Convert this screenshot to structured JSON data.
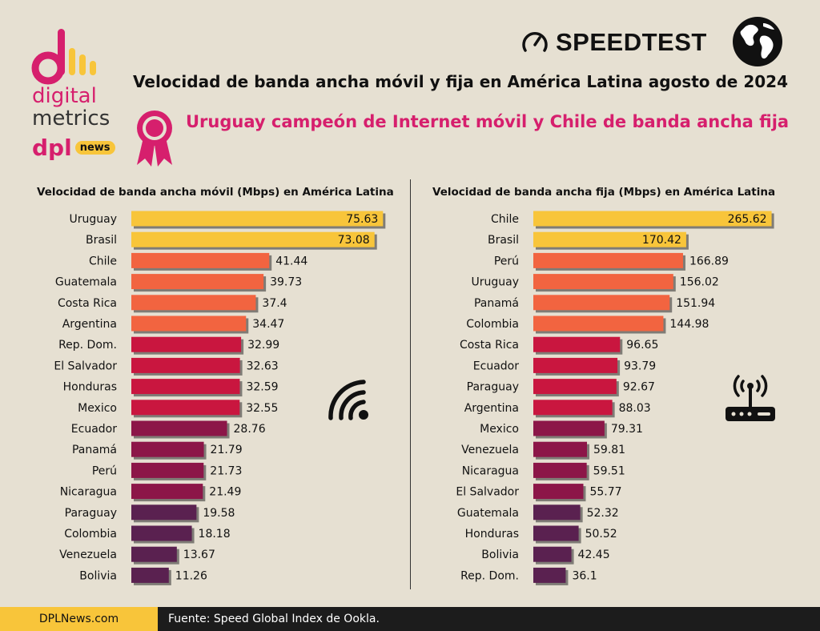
{
  "brand": {
    "logo_line1": "digital",
    "logo_line2": "metrics",
    "logo_dpl": "dpl",
    "logo_news": "news",
    "speedtest": "SPEEDTEST"
  },
  "header": {
    "title": "Velocidad de banda ancha móvil y fija en América Latina agosto de 2024",
    "subtitle": "Uruguay campeón de Internet móvil y Chile de banda ancha fija"
  },
  "colors": {
    "gold": "#f8c53a",
    "orange": "#f26440",
    "red": "#c9163f",
    "maroon": "#8c1648",
    "purple": "#5a2150",
    "accent_pink": "#d61f6d"
  },
  "icons": [
    "speedtest-gauge-icon",
    "globe-icon",
    "medal-icon",
    "wifi-icon",
    "router-icon"
  ],
  "footer": {
    "site": "DPLNews.com",
    "source": "Fuente: Speed Global Index de Ookla."
  },
  "chart_data": [
    {
      "type": "bar",
      "orientation": "horizontal",
      "title": "Velocidad de banda ancha móvil (Mbps) en América Latina",
      "categories": [
        "Uruguay",
        "Brasil",
        "Chile",
        "Guatemala",
        "Costa Rica",
        "Argentina",
        "Rep. Dom.",
        "El Salvador",
        "Honduras",
        "Mexico",
        "Ecuador",
        "Panamá",
        "Perú",
        "Nicaragua",
        "Paraguay",
        "Colombia",
        "Venezuela",
        "Bolivia"
      ],
      "values": [
        75.63,
        73.08,
        41.44,
        39.73,
        37.4,
        34.47,
        32.99,
        32.63,
        32.59,
        32.55,
        28.76,
        21.79,
        21.73,
        21.49,
        19.58,
        18.18,
        13.67,
        11.26
      ],
      "value_labels": [
        "75.63",
        "73.08",
        "41.44",
        "39.73",
        "37.4",
        "34.47",
        "32.99",
        "32.63",
        "32.59",
        "32.55",
        "28.76",
        "21.79",
        "21.73",
        "21.49",
        "19.58",
        "18.18",
        "13.67",
        "11.26"
      ],
      "bar_colors": [
        "gold",
        "gold",
        "orange",
        "orange",
        "orange",
        "orange",
        "red",
        "red",
        "red",
        "red",
        "maroon",
        "maroon",
        "maroon",
        "maroon",
        "purple",
        "purple",
        "purple",
        "purple"
      ],
      "xlim": [
        0,
        77
      ]
    },
    {
      "type": "bar",
      "orientation": "horizontal",
      "title": "Velocidad de banda ancha fija (Mbps) en América Latina",
      "categories": [
        "Chile",
        "Brasil",
        "Perú",
        "Uruguay",
        "Panamá",
        "Colombia",
        "Costa Rica",
        "Ecuador",
        "Paraguay",
        "Argentina",
        "Mexico",
        "Venezuela",
        "Nicaragua",
        "El Salvador",
        "Guatemala",
        "Honduras",
        "Bolivia",
        "Rep. Dom."
      ],
      "values": [
        265.62,
        170.42,
        166.89,
        156.02,
        151.94,
        144.98,
        96.65,
        93.79,
        92.67,
        88.03,
        79.31,
        59.81,
        59.51,
        55.77,
        52.32,
        50.52,
        42.45,
        36.1
      ],
      "value_labels": [
        "265.62",
        "170.42",
        "166.89",
        "156.02",
        "151.94",
        "144.98",
        "96.65",
        "93.79",
        "92.67",
        "88.03",
        "79.31",
        "59.81",
        "59.51",
        "55.77",
        "52.32",
        "50.52",
        "42.45",
        "36.1"
      ],
      "bar_colors": [
        "gold",
        "gold",
        "orange",
        "orange",
        "orange",
        "orange",
        "red",
        "red",
        "red",
        "red",
        "maroon",
        "maroon",
        "maroon",
        "maroon",
        "purple",
        "purple",
        "purple",
        "purple"
      ],
      "xlim": [
        0,
        266
      ]
    }
  ]
}
